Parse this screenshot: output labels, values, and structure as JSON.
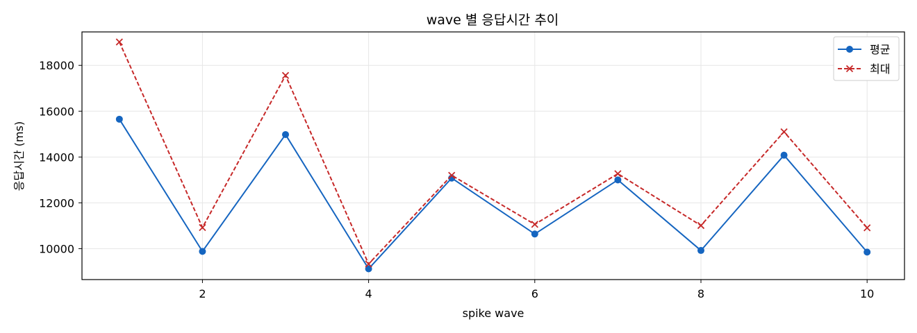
{
  "chart_data": {
    "type": "line",
    "title": "wave 별 응답시간 추이",
    "xlabel": "spike wave",
    "ylabel": "응답시간 (ms)",
    "x": [
      1,
      2,
      3,
      4,
      5,
      6,
      7,
      8,
      9,
      10
    ],
    "xlim": [
      0.55,
      10.45
    ],
    "ylim": [
      8650,
      19460
    ],
    "xticks": [
      2,
      4,
      6,
      8,
      10
    ],
    "yticks": [
      10000,
      12000,
      14000,
      16000,
      18000
    ],
    "grid": true,
    "legend_position": "top-right",
    "series": [
      {
        "name": "평균",
        "color": "#1565c0",
        "line_style": "solid",
        "marker": "circle",
        "values": [
          15650,
          9880,
          14980,
          9120,
          13080,
          10640,
          13000,
          9920,
          14080,
          9850
        ]
      },
      {
        "name": "최대",
        "color": "#c62828",
        "line_style": "dashed",
        "marker": "x",
        "values": [
          19020,
          10920,
          17560,
          9330,
          13200,
          11060,
          13270,
          11010,
          15100,
          10910
        ]
      }
    ]
  }
}
